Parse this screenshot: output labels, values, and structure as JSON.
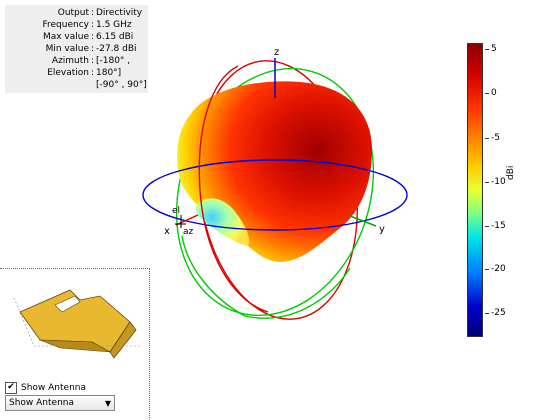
{
  "info": {
    "output_label": "Output",
    "output_value": "Directivity",
    "frequency_label": "Frequency",
    "frequency_value": "1.5 GHz",
    "max_label": "Max value",
    "max_value": "6.15 dBi",
    "min_label": "Min value",
    "min_value": "-27.8 dBi",
    "azimuth_label": "Azimuth",
    "azimuth_value": "[-180° ,",
    "elevation_label": "Elevation",
    "elevation_value": "180°]",
    "range_value": "[-90° , 90°]"
  },
  "axes": {
    "x": "x",
    "y": "y",
    "z": "z",
    "az": "az",
    "el": "el"
  },
  "colorbar": {
    "unit": "dBi",
    "ticks": [
      "5",
      "0",
      "-5",
      "-10",
      "-15",
      "-20",
      "-25"
    ]
  },
  "controls": {
    "show_antenna_label": "Show Antenna",
    "show_antenna_checked": true,
    "dropdown_value": "Show Antenna"
  }
}
